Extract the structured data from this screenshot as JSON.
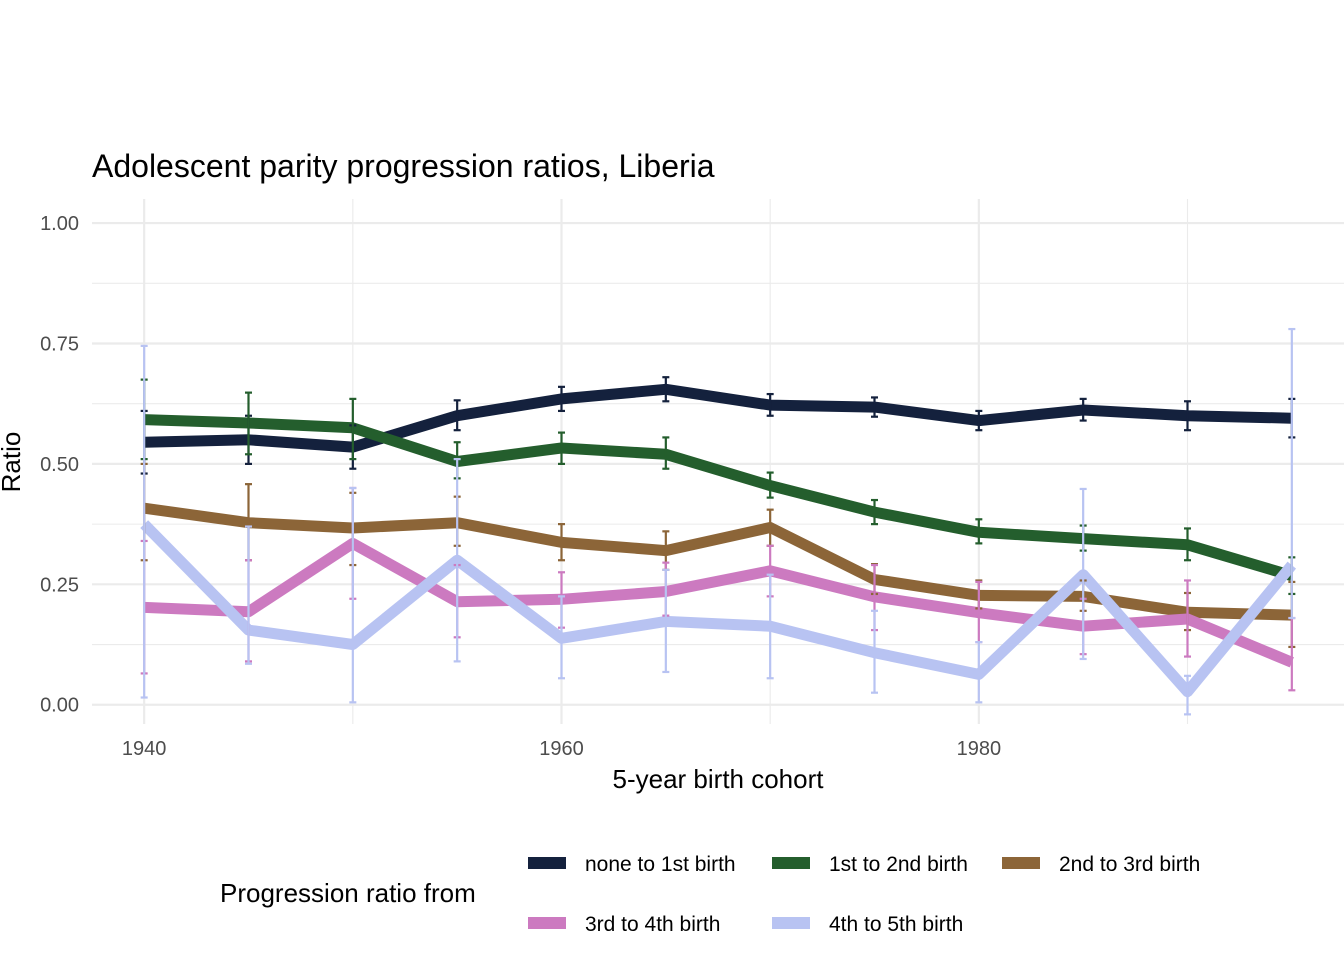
{
  "chart_data": {
    "type": "line",
    "title": "Adolescent parity progression ratios,  Liberia",
    "xlabel": "5-year birth cohort",
    "ylabel": "Ratio",
    "xlim": [
      1937.5,
      1997.5
    ],
    "ylim": [
      -0.04,
      1.05
    ],
    "x_ticks": [
      1940,
      1960,
      1980
    ],
    "x_tick_labels": [
      "1940",
      "1960",
      "1980"
    ],
    "y_ticks": [
      0,
      0.25,
      0.5,
      0.75,
      1.0
    ],
    "y_tick_labels": [
      "0.00",
      "0.25",
      "0.50",
      "0.75",
      "1.00"
    ],
    "legend_title": "Progression ratio from",
    "legend_position": "bottom",
    "grid": true,
    "x": [
      1940,
      1945,
      1950,
      1955,
      1960,
      1965,
      1970,
      1975,
      1980,
      1985,
      1990,
      1995
    ],
    "series": [
      {
        "name": "none to 1st birth",
        "color": "#14213d",
        "values": [
          0.545,
          0.55,
          0.535,
          0.6,
          0.635,
          0.655,
          0.622,
          0.618,
          0.59,
          0.612,
          0.6,
          0.595
        ],
        "lower": [
          0.48,
          0.5,
          0.49,
          0.57,
          0.61,
          0.63,
          0.6,
          0.598,
          0.57,
          0.59,
          0.57,
          0.555
        ],
        "upper": [
          0.61,
          0.6,
          0.58,
          0.632,
          0.66,
          0.68,
          0.645,
          0.638,
          0.61,
          0.635,
          0.63,
          0.635
        ]
      },
      {
        "name": "1st to 2nd birth",
        "color": "#245e2d",
        "values": [
          0.592,
          0.585,
          0.575,
          0.505,
          0.533,
          0.52,
          0.455,
          0.4,
          0.358,
          0.345,
          0.332,
          0.268
        ],
        "lower": [
          0.51,
          0.52,
          0.51,
          0.47,
          0.5,
          0.49,
          0.43,
          0.375,
          0.335,
          0.32,
          0.3,
          0.23
        ],
        "upper": [
          0.675,
          0.648,
          0.635,
          0.545,
          0.565,
          0.555,
          0.482,
          0.425,
          0.385,
          0.372,
          0.366,
          0.306
        ]
      },
      {
        "name": "2nd to 3rd birth",
        "color": "#8c6538",
        "values": [
          0.408,
          0.378,
          0.367,
          0.378,
          0.337,
          0.32,
          0.368,
          0.26,
          0.227,
          0.225,
          0.192,
          0.186
        ],
        "lower": [
          0.3,
          0.3,
          0.29,
          0.33,
          0.3,
          0.28,
          0.33,
          0.23,
          0.2,
          0.195,
          0.155,
          0.12
        ],
        "upper": [
          0.5,
          0.458,
          0.44,
          0.432,
          0.375,
          0.36,
          0.405,
          0.292,
          0.258,
          0.258,
          0.232,
          0.255
        ]
      },
      {
        "name": "3rd to 4th birth",
        "color": "#cc7ac0",
        "values": [
          0.202,
          0.193,
          0.335,
          0.214,
          0.219,
          0.235,
          0.278,
          0.224,
          0.191,
          0.163,
          0.178,
          0.088
        ],
        "lower": [
          0.065,
          0.09,
          0.22,
          0.14,
          0.16,
          0.185,
          0.225,
          0.155,
          0.13,
          0.105,
          0.1,
          0.03
        ],
        "upper": [
          0.34,
          0.3,
          0.45,
          0.29,
          0.275,
          0.295,
          0.33,
          0.29,
          0.255,
          0.22,
          0.258,
          0.18
        ]
      },
      {
        "name": "4th to 5th birth",
        "color": "#b8c3f2",
        "values": [
          0.375,
          0.155,
          0.125,
          0.3,
          0.138,
          0.173,
          0.163,
          0.108,
          0.063,
          0.27,
          0.027,
          0.29
        ],
        "lower": [
          0.015,
          0.085,
          0.005,
          0.09,
          0.055,
          0.068,
          0.055,
          0.025,
          0.005,
          0.095,
          -0.02,
          0.18
        ],
        "upper": [
          0.745,
          0.37,
          0.45,
          0.51,
          0.225,
          0.28,
          0.27,
          0.195,
          0.13,
          0.448,
          0.06,
          0.78
        ]
      }
    ]
  }
}
